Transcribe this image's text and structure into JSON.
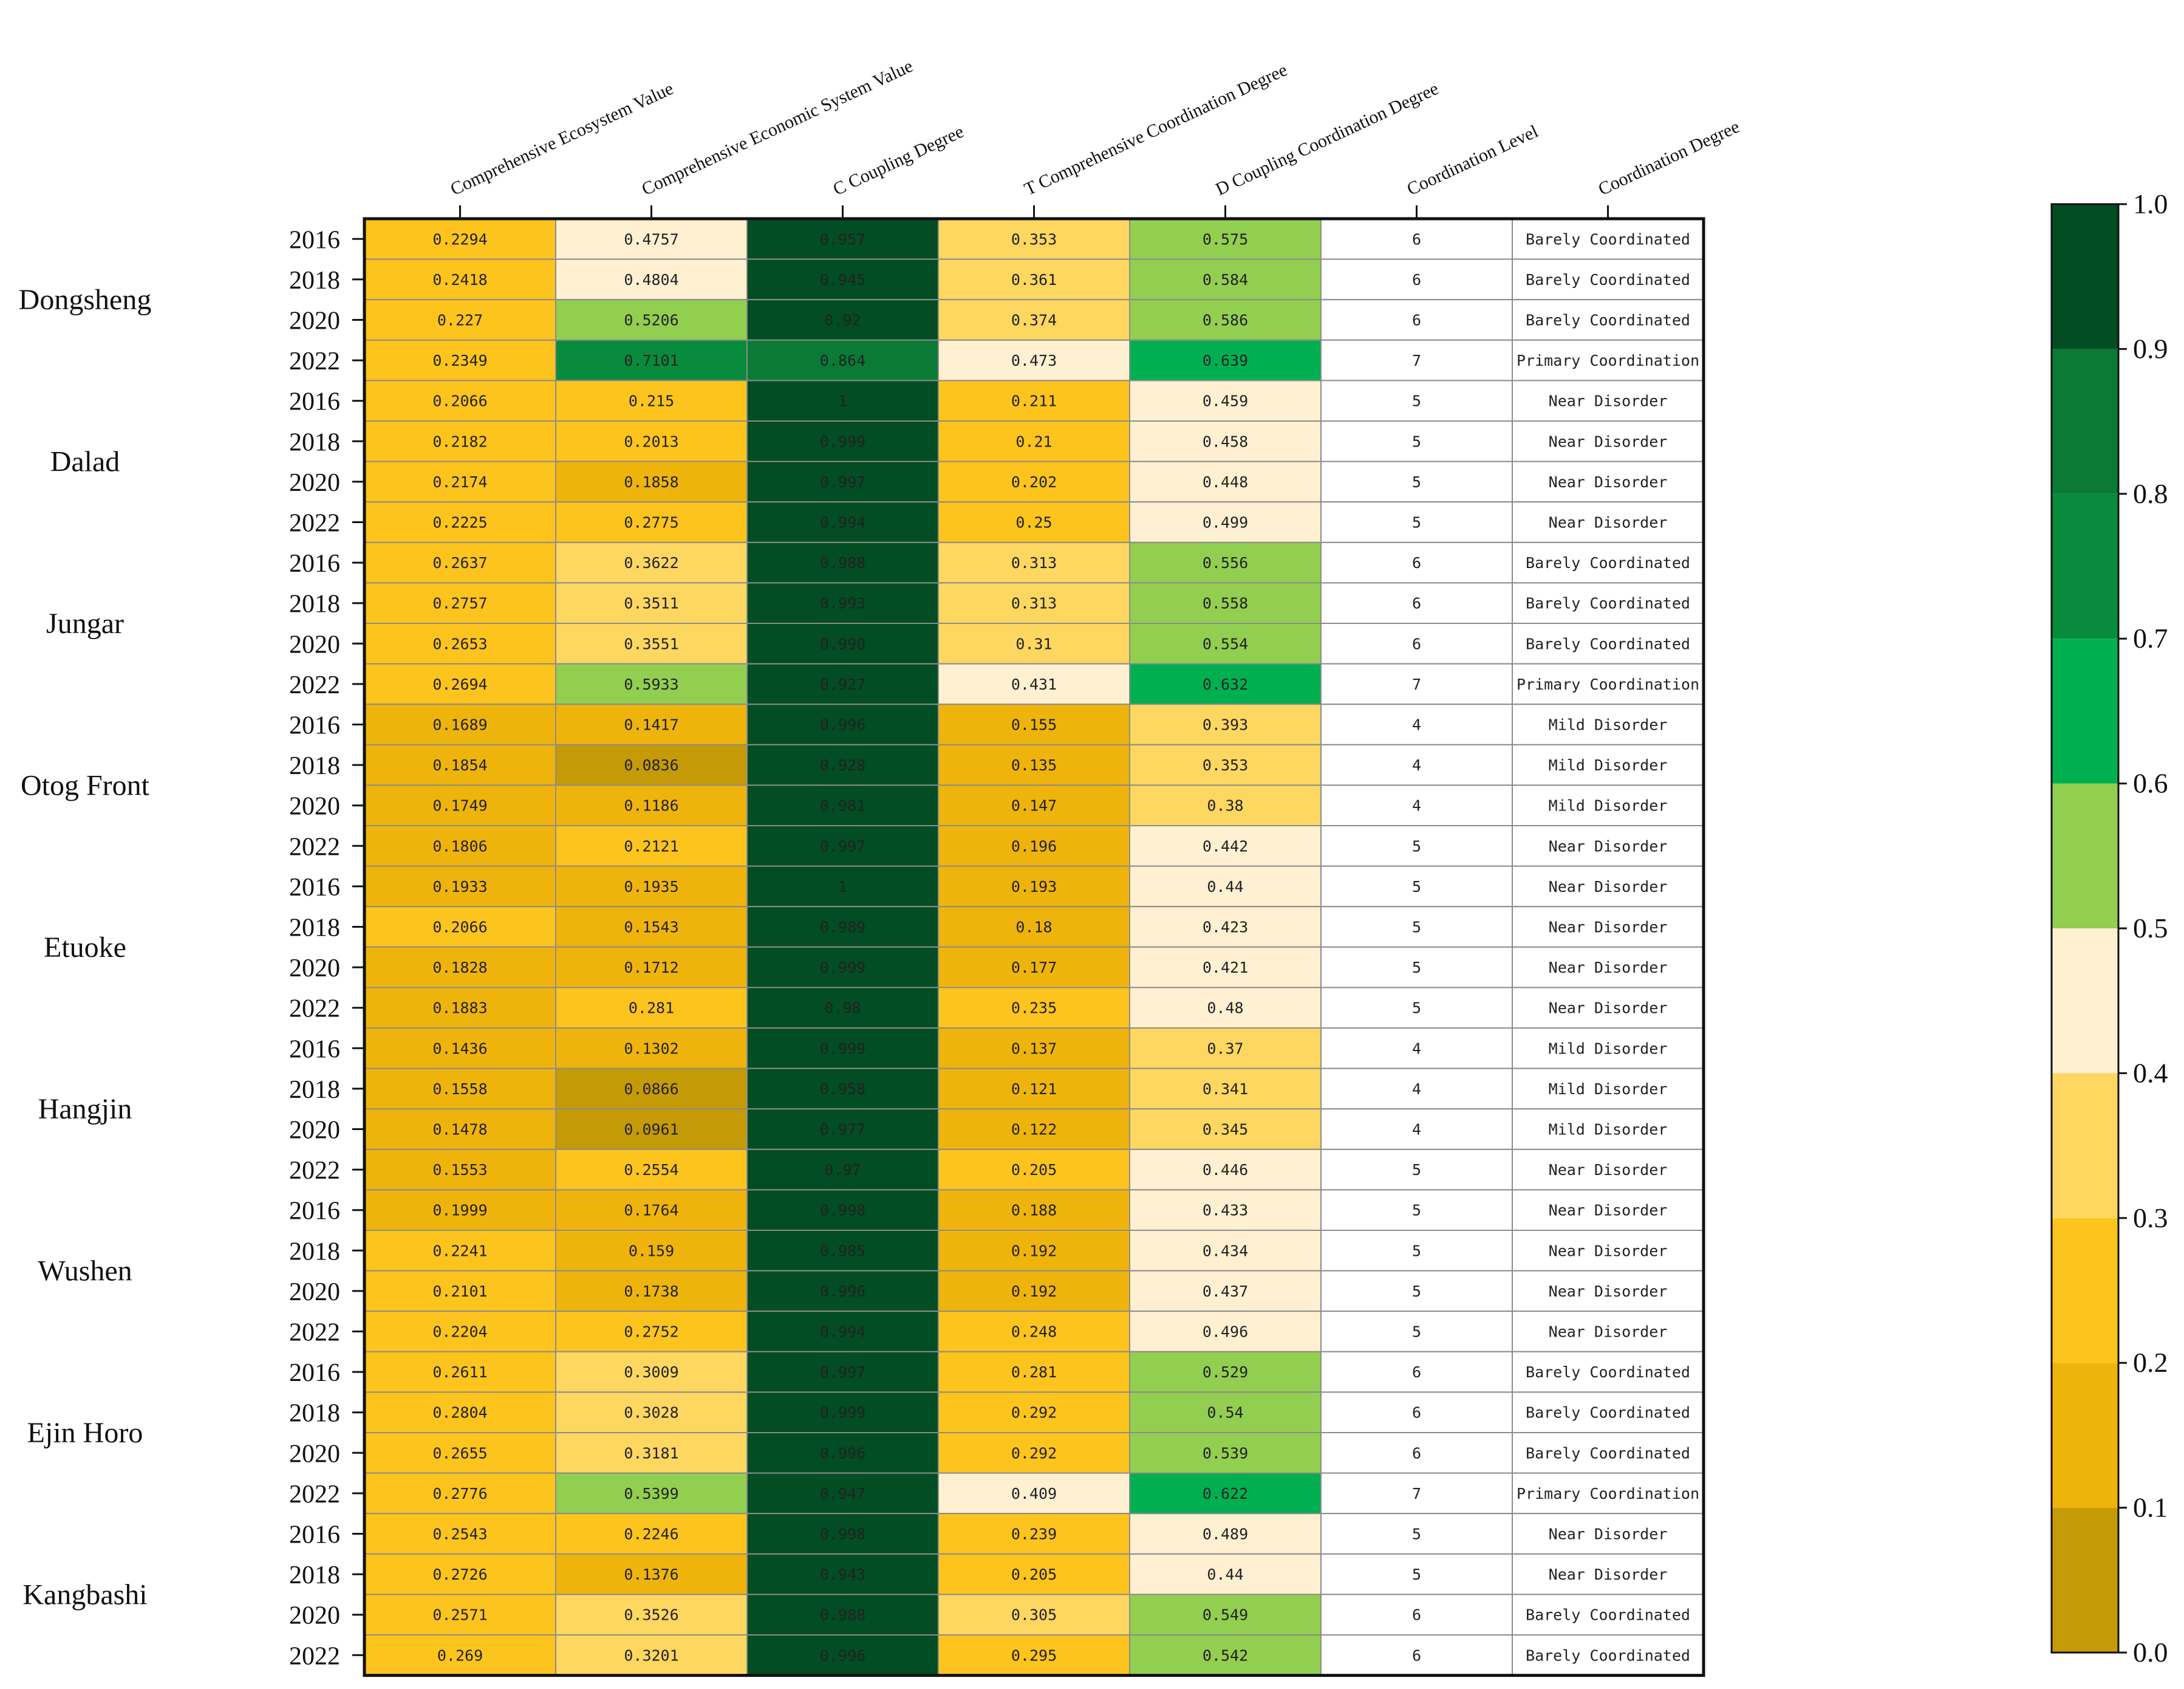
{
  "chart_data": {
    "type": "heatmap",
    "columns": [
      "Comprehensive Ecosystem Value",
      "Comprehensive Economic System Value",
      "C Coupling Degree",
      "T Comprehensive Coordination Degree",
      "D Coupling Coordination Degree",
      "Coordination Level",
      "Coordination Degree"
    ],
    "regions": [
      "Dongsheng",
      "Dalad",
      "Jungar",
      "Otog Front",
      "Etuoke",
      "Hangjin",
      "Wushen",
      "Ejin Horo",
      "Kangbashi"
    ],
    "rows": [
      {
        "region": "Dongsheng",
        "year": "2016",
        "values": [
          "0.2294",
          "0.4757",
          "0.957",
          "0.353",
          "0.575",
          "6",
          "Barely Coordinated"
        ]
      },
      {
        "region": "Dongsheng",
        "year": "2018",
        "values": [
          "0.2418",
          "0.4804",
          "0.945",
          "0.361",
          "0.584",
          "6",
          "Barely Coordinated"
        ]
      },
      {
        "region": "Dongsheng",
        "year": "2020",
        "values": [
          "0.227",
          "0.5206",
          "0.92",
          "0.374",
          "0.586",
          "6",
          "Barely Coordinated"
        ]
      },
      {
        "region": "Dongsheng",
        "year": "2022",
        "values": [
          "0.2349",
          "0.7101",
          "0.864",
          "0.473",
          "0.639",
          "7",
          "Primary Coordination"
        ]
      },
      {
        "region": "Dalad",
        "year": "2016",
        "values": [
          "0.2066",
          "0.215",
          "1",
          "0.211",
          "0.459",
          "5",
          "Near Disorder"
        ]
      },
      {
        "region": "Dalad",
        "year": "2018",
        "values": [
          "0.2182",
          "0.2013",
          "0.999",
          "0.21",
          "0.458",
          "5",
          "Near Disorder"
        ]
      },
      {
        "region": "Dalad",
        "year": "2020",
        "values": [
          "0.2174",
          "0.1858",
          "0.997",
          "0.202",
          "0.448",
          "5",
          "Near Disorder"
        ]
      },
      {
        "region": "Dalad",
        "year": "2022",
        "values": [
          "0.2225",
          "0.2775",
          "0.994",
          "0.25",
          "0.499",
          "5",
          "Near Disorder"
        ]
      },
      {
        "region": "Jungar",
        "year": "2016",
        "values": [
          "0.2637",
          "0.3622",
          "0.988",
          "0.313",
          "0.556",
          "6",
          "Barely Coordinated"
        ]
      },
      {
        "region": "Jungar",
        "year": "2018",
        "values": [
          "0.2757",
          "0.3511",
          "0.993",
          "0.313",
          "0.558",
          "6",
          "Barely Coordinated"
        ]
      },
      {
        "region": "Jungar",
        "year": "2020",
        "values": [
          "0.2653",
          "0.3551",
          "0.990",
          "0.31",
          "0.554",
          "6",
          "Barely Coordinated"
        ]
      },
      {
        "region": "Jungar",
        "year": "2022",
        "values": [
          "0.2694",
          "0.5933",
          "0.927",
          "0.431",
          "0.632",
          "7",
          "Primary Coordination"
        ]
      },
      {
        "region": "Otog Front",
        "year": "2016",
        "values": [
          "0.1689",
          "0.1417",
          "0.996",
          "0.155",
          "0.393",
          "4",
          "Mild Disorder"
        ]
      },
      {
        "region": "Otog Front",
        "year": "2018",
        "values": [
          "0.1854",
          "0.0836",
          "0.928",
          "0.135",
          "0.353",
          "4",
          "Mild Disorder"
        ]
      },
      {
        "region": "Otog Front",
        "year": "2020",
        "values": [
          "0.1749",
          "0.1186",
          "0.981",
          "0.147",
          "0.38",
          "4",
          "Mild Disorder"
        ]
      },
      {
        "region": "Otog Front",
        "year": "2022",
        "values": [
          "0.1806",
          "0.2121",
          "0.997",
          "0.196",
          "0.442",
          "5",
          "Near Disorder"
        ]
      },
      {
        "region": "Etuoke",
        "year": "2016",
        "values": [
          "0.1933",
          "0.1935",
          "1",
          "0.193",
          "0.44",
          "5",
          "Near Disorder"
        ]
      },
      {
        "region": "Etuoke",
        "year": "2018",
        "values": [
          "0.2066",
          "0.1543",
          "0.989",
          "0.18",
          "0.423",
          "5",
          "Near Disorder"
        ]
      },
      {
        "region": "Etuoke",
        "year": "2020",
        "values": [
          "0.1828",
          "0.1712",
          "0.999",
          "0.177",
          "0.421",
          "5",
          "Near Disorder"
        ]
      },
      {
        "region": "Etuoke",
        "year": "2022",
        "values": [
          "0.1883",
          "0.281",
          "0.98",
          "0.235",
          "0.48",
          "5",
          "Near Disorder"
        ]
      },
      {
        "region": "Hangjin",
        "year": "2016",
        "values": [
          "0.1436",
          "0.1302",
          "0.999",
          "0.137",
          "0.37",
          "4",
          "Mild Disorder"
        ]
      },
      {
        "region": "Hangjin",
        "year": "2018",
        "values": [
          "0.1558",
          "0.0866",
          "0.958",
          "0.121",
          "0.341",
          "4",
          "Mild Disorder"
        ]
      },
      {
        "region": "Hangjin",
        "year": "2020",
        "values": [
          "0.1478",
          "0.0961",
          "0.977",
          "0.122",
          "0.345",
          "4",
          "Mild Disorder"
        ]
      },
      {
        "region": "Hangjin",
        "year": "2022",
        "values": [
          "0.1553",
          "0.2554",
          "0.97",
          "0.205",
          "0.446",
          "5",
          "Near Disorder"
        ]
      },
      {
        "region": "Wushen",
        "year": "2016",
        "values": [
          "0.1999",
          "0.1764",
          "0.998",
          "0.188",
          "0.433",
          "5",
          "Near Disorder"
        ]
      },
      {
        "region": "Wushen",
        "year": "2018",
        "values": [
          "0.2241",
          "0.159",
          "0.985",
          "0.192",
          "0.434",
          "5",
          "Near Disorder"
        ]
      },
      {
        "region": "Wushen",
        "year": "2020",
        "values": [
          "0.2101",
          "0.1738",
          "0.996",
          "0.192",
          "0.437",
          "5",
          "Near Disorder"
        ]
      },
      {
        "region": "Wushen",
        "year": "2022",
        "values": [
          "0.2204",
          "0.2752",
          "0.994",
          "0.248",
          "0.496",
          "5",
          "Near Disorder"
        ]
      },
      {
        "region": "Ejin Horo",
        "year": "2016",
        "values": [
          "0.2611",
          "0.3009",
          "0.997",
          "0.281",
          "0.529",
          "6",
          "Barely Coordinated"
        ]
      },
      {
        "region": "Ejin Horo",
        "year": "2018",
        "values": [
          "0.2804",
          "0.3028",
          "0.999",
          "0.292",
          "0.54",
          "6",
          "Barely Coordinated"
        ]
      },
      {
        "region": "Ejin Horo",
        "year": "2020",
        "values": [
          "0.2655",
          "0.3181",
          "0.996",
          "0.292",
          "0.539",
          "6",
          "Barely Coordinated"
        ]
      },
      {
        "region": "Ejin Horo",
        "year": "2022",
        "values": [
          "0.2776",
          "0.5399",
          "0.947",
          "0.409",
          "0.622",
          "7",
          "Primary Coordination"
        ]
      },
      {
        "region": "Kangbashi",
        "year": "2016",
        "values": [
          "0.2543",
          "0.2246",
          "0.998",
          "0.239",
          "0.489",
          "5",
          "Near Disorder"
        ]
      },
      {
        "region": "Kangbashi",
        "year": "2018",
        "values": [
          "0.2726",
          "0.1376",
          "0.943",
          "0.205",
          "0.44",
          "5",
          "Near Disorder"
        ]
      },
      {
        "region": "Kangbashi",
        "year": "2020",
        "values": [
          "0.2571",
          "0.3526",
          "0.988",
          "0.305",
          "0.549",
          "6",
          "Barely Coordinated"
        ]
      },
      {
        "region": "Kangbashi",
        "year": "2022",
        "values": [
          "0.269",
          "0.3201",
          "0.996",
          "0.295",
          "0.542",
          "6",
          "Barely Coordinated"
        ]
      }
    ],
    "colored_columns": [
      0,
      1,
      2,
      3,
      4
    ],
    "colorbar": {
      "range": [
        0,
        1
      ],
      "ticks": [
        "0.0",
        "0.1",
        "0.2",
        "0.3",
        "0.4",
        "0.5",
        "0.6",
        "0.7",
        "0.8",
        "0.9",
        "1.0"
      ],
      "bands": [
        {
          "from": 0.0,
          "to": 0.1,
          "color": "#C49A06"
        },
        {
          "from": 0.1,
          "to": 0.2,
          "color": "#EFB40C"
        },
        {
          "from": 0.2,
          "to": 0.3,
          "color": "#FCC41C"
        },
        {
          "from": 0.3,
          "to": 0.4,
          "color": "#FDD760"
        },
        {
          "from": 0.4,
          "to": 0.5,
          "color": "#FEF0D1"
        },
        {
          "from": 0.5,
          "to": 0.6,
          "color": "#92CE50"
        },
        {
          "from": 0.6,
          "to": 0.7,
          "color": "#00B050"
        },
        {
          "from": 0.7,
          "to": 0.8,
          "color": "#088B3C"
        },
        {
          "from": 0.8,
          "to": 0.9,
          "color": "#0A7A35"
        },
        {
          "from": 0.9,
          "to": 1.0,
          "color": "#024D23"
        }
      ]
    },
    "uncolored_cell_color": "#FFFFFF"
  }
}
